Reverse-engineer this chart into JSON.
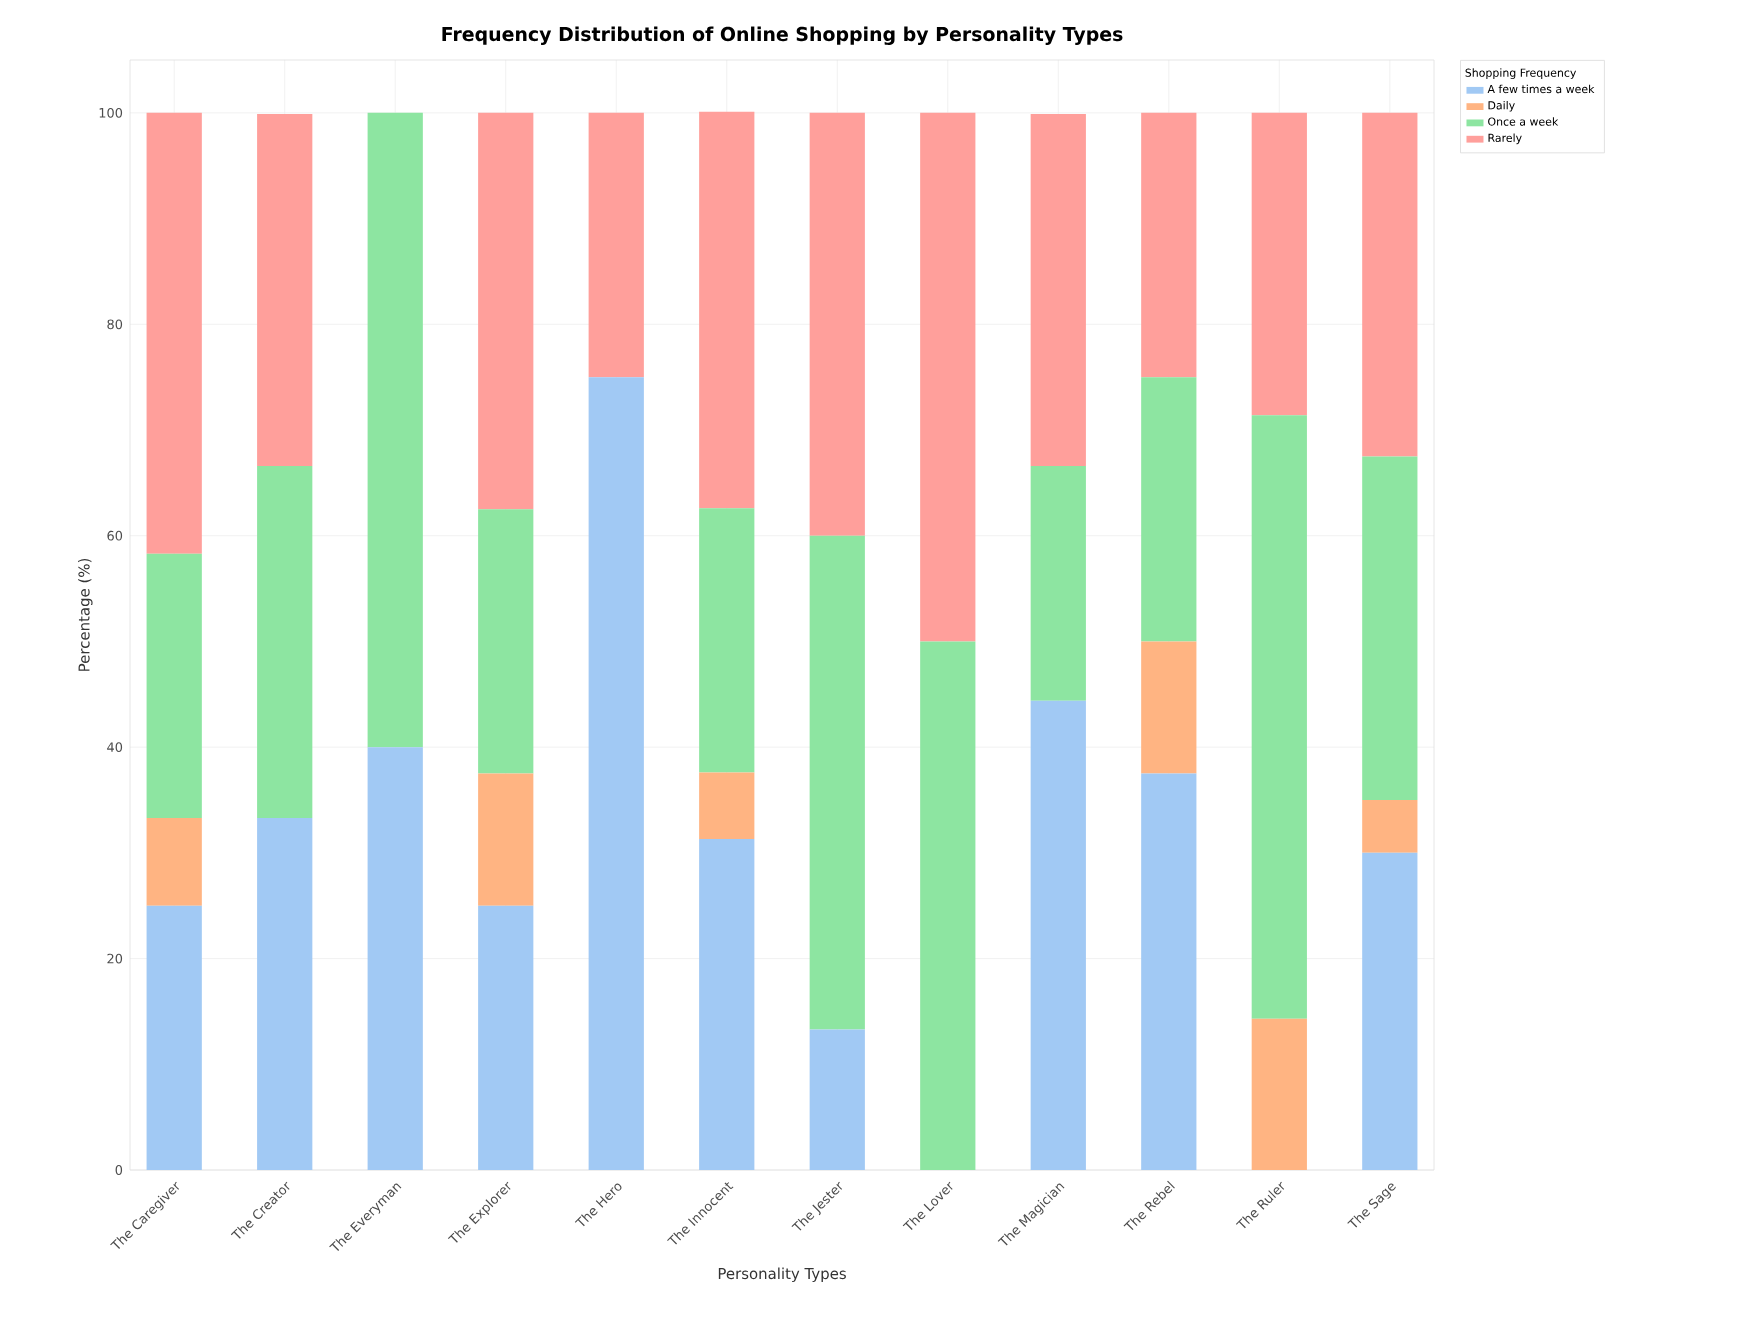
{
  "chart_data": {
    "type": "bar",
    "stacked": true,
    "title": "Frequency Distribution of Online Shopping by Personality Types",
    "xlabel": "Personality Types",
    "ylabel": "Percentage (%)",
    "legend_title": "Shopping Frequency",
    "categories": [
      "The Caregiver",
      "The Creator",
      "The Everyman",
      "The Explorer",
      "The Hero",
      "The Innocent",
      "The Jester",
      "The Lover",
      "The Magician",
      "The Rebel",
      "The Ruler",
      "The Sage"
    ],
    "series": [
      {
        "name": "A few times a week",
        "color": "#a1c9f4",
        "values": [
          25,
          33.3,
          40,
          25,
          75,
          31.3,
          13.3,
          0,
          44.4,
          37.5,
          0,
          30
        ]
      },
      {
        "name": "Daily",
        "color": "#ffb482",
        "values": [
          8.3,
          0,
          0,
          12.5,
          0,
          6.3,
          0,
          0,
          0,
          12.5,
          14.3,
          5
        ]
      },
      {
        "name": "Once a week",
        "color": "#8de5a1",
        "values": [
          25,
          33.3,
          60,
          25,
          0,
          25,
          46.7,
          50,
          22.2,
          25,
          57.1,
          32.5
        ]
      },
      {
        "name": "Rarely",
        "color": "#ff9f9b",
        "values": [
          41.7,
          33.3,
          0,
          37.5,
          25,
          37.5,
          40,
          50,
          33.3,
          25,
          28.6,
          32.5
        ]
      }
    ],
    "ylim": [
      0,
      105
    ],
    "yticks": [
      0,
      20,
      40,
      60,
      80,
      100
    ],
    "grid": true,
    "legend": "top right"
  }
}
